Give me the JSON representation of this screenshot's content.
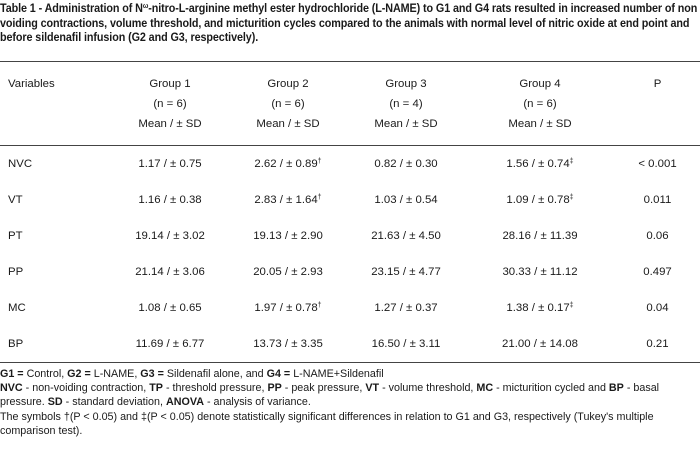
{
  "title": {
    "prefix": "Table 1 - Administration of N",
    "sup": "ω",
    "rest": "-nitro-L-arginine methyl ester hydrochloride (L-NAME) to G1 and G4 rats resulted in increased number of non voiding contractions, volume threshold, and micturition cycles compared to the animals with normal level of nitric oxide at end point and before sildenafil infusion (G2 and G3, respectively)."
  },
  "header": {
    "variables": "Variables",
    "groups": [
      {
        "name": "Group 1",
        "n": "(n = 6)",
        "stat": "Mean / ± SD"
      },
      {
        "name": "Group 2",
        "n": "(n = 6)",
        "stat": "Mean / ± SD"
      },
      {
        "name": "Group 3",
        "n": "(n = 4)",
        "stat": "Mean / ± SD"
      },
      {
        "name": "Group 4",
        "n": "(n = 6)",
        "stat": "Mean / ± SD"
      }
    ],
    "p": "P"
  },
  "rows": [
    {
      "var": "NVC",
      "g1": "1.17 / ± 0.75",
      "g2": "2.62 / ± 0.89",
      "g2m": "†",
      "g3": "0.82 / ± 0.30",
      "g4": "1.56 / ± 0.74",
      "g4m": "‡",
      "p": "< 0.001"
    },
    {
      "var": "VT",
      "g1": "1.16 / ± 0.38",
      "g2": "2.83 / ± 1.64",
      "g2m": "†",
      "g3": "1.03 / ± 0.54",
      "g4": "1.09 / ± 0.78",
      "g4m": "‡",
      "p": "0.011"
    },
    {
      "var": "PT",
      "g1": "19.14 / ± 3.02",
      "g2": "19.13 / ± 2.90",
      "g2m": "",
      "g3": "21.63 / ± 4.50",
      "g4": "28.16 / ± 11.39",
      "g4m": "",
      "p": "0.06"
    },
    {
      "var": "PP",
      "g1": "21.14 / ± 3.06",
      "g2": "20.05 / ± 2.93",
      "g2m": "",
      "g3": "23.15 / ± 4.77",
      "g4": "30.33 / ± 11.12",
      "g4m": "",
      "p": "0.497"
    },
    {
      "var": "MC",
      "g1": "1.08 / ± 0.65",
      "g2": "1.97 / ± 0.78",
      "g2m": "†",
      "g3": "1.27 / ± 0.37",
      "g4": "1.38 / ± 0.17",
      "g4m": "‡",
      "p": "0.04"
    },
    {
      "var": "BP",
      "g1": "11.69 / ± 6.77",
      "g2": "13.73 / ± 3.35",
      "g2m": "",
      "g3": "16.50 / ± 3.11",
      "g4": "21.00 / ± 14.08",
      "g4m": "",
      "p": "0.21"
    }
  ],
  "notes": {
    "line1": {
      "a_k": "G1 =",
      "a_v": " Control, ",
      "b_k": "G2 =",
      "b_v": " L-NAME, ",
      "c_k": "G3 =",
      "c_v": " Sildenafil alone, and ",
      "d_k": "G4 =",
      "d_v": " L-NAME+Sildenafil"
    },
    "line2": {
      "nvc_k": "NVC",
      "nvc_v": " - non-voiding contraction, ",
      "tp_k": "TP",
      "tp_v": " - threshold pressure, ",
      "pp_k": "PP",
      "pp_v": " - peak pressure, ",
      "vt_k": "VT",
      "vt_v": " - volume threshold, ",
      "mc_k": "MC",
      "mc_v": " - micturition cycled and ",
      "bp_k": "BP",
      "bp_v": " - basal pressure. ",
      "sd_k": "SD",
      "sd_v": " - standard deviation, ",
      "an_k": "ANOVA",
      "an_v": " - analysis of variance."
    },
    "line3": "The symbols †(P < 0.05) and ‡(P < 0.05) denote statistically significant differences in relation to G1 and G3, respectively (Tukey's multiple comparison test)."
  }
}
